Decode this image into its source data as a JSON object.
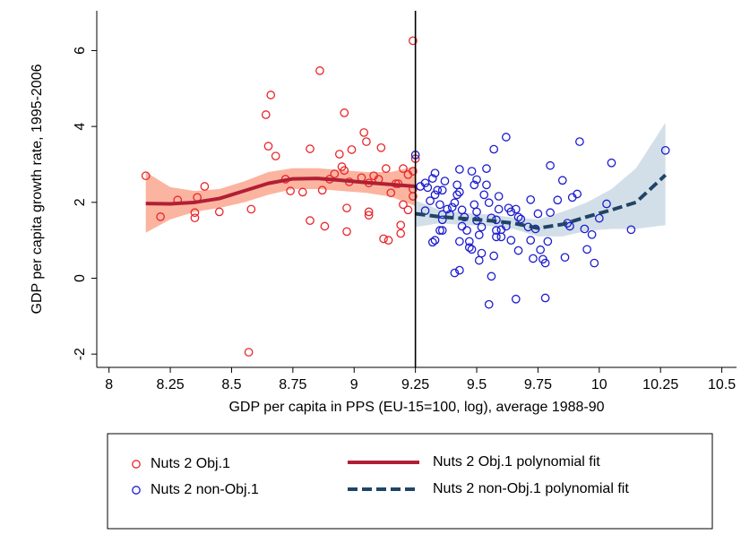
{
  "chart_data": {
    "type": "scatter",
    "xlabel": "GDP per capita in PPS (EU-15=100, log), average 1988-90",
    "ylabel": "GDP per capita growth rate, 1995-2006",
    "xlim": [
      7.95,
      10.56
    ],
    "ylim": [
      -2.35,
      7.05
    ],
    "xticks": [
      8,
      8.25,
      8.5,
      8.75,
      9,
      9.25,
      9.5,
      9.75,
      10,
      10.25,
      10.5
    ],
    "yticks": [
      -2,
      0,
      2,
      4,
      6
    ],
    "xline": 9.25,
    "series": [
      {
        "name": "Nuts 2 Obj.1",
        "type": "scatter",
        "color": "#e8262a",
        "x": [
          8.15,
          8.21,
          8.28,
          8.35,
          8.35,
          8.36,
          8.39,
          8.45,
          8.57,
          8.58,
          8.64,
          8.65,
          8.66,
          8.68,
          8.72,
          8.74,
          8.79,
          8.82,
          8.82,
          8.86,
          8.87,
          8.88,
          8.9,
          8.92,
          8.94,
          8.95,
          8.96,
          8.96,
          8.97,
          8.97,
          8.98,
          8.99,
          9.03,
          9.04,
          9.05,
          9.06,
          9.06,
          9.06,
          9.08,
          9.1,
          9.11,
          9.12,
          9.13,
          9.14,
          9.15,
          9.17,
          9.18,
          9.19,
          9.19,
          9.2,
          9.2,
          9.22,
          9.22,
          9.24,
          9.24,
          9.25,
          9.24,
          9.24
        ],
        "values": [
          2.7,
          1.62,
          2.06,
          1.73,
          1.59,
          2.13,
          2.42,
          1.75,
          -1.95,
          1.82,
          4.31,
          3.48,
          4.83,
          3.22,
          2.61,
          2.3,
          2.27,
          1.52,
          3.41,
          5.47,
          2.32,
          1.37,
          2.61,
          2.75,
          3.27,
          2.94,
          2.84,
          4.36,
          1.23,
          1.85,
          2.54,
          3.39,
          2.65,
          3.84,
          3.6,
          1.75,
          1.66,
          2.51,
          2.7,
          2.61,
          3.44,
          1.04,
          2.89,
          1.0,
          2.25,
          2.49,
          2.49,
          1.18,
          1.4,
          1.94,
          2.89,
          2.73,
          1.8,
          2.35,
          6.26,
          3.15,
          2.82,
          2.16
        ]
      },
      {
        "name": "Nuts 2 non-Obj.1",
        "type": "scatter",
        "color": "#1c1ccf",
        "x": [
          9.25,
          9.27,
          9.29,
          9.3,
          9.29,
          9.31,
          9.32,
          9.33,
          9.33,
          9.34,
          9.35,
          9.36,
          9.36,
          9.37,
          9.32,
          9.33,
          9.35,
          9.36,
          9.36,
          9.38,
          9.39,
          9.4,
          9.41,
          9.42,
          9.42,
          9.43,
          9.43,
          9.41,
          9.43,
          9.43,
          9.44,
          9.44,
          9.45,
          9.46,
          9.47,
          9.47,
          9.48,
          9.48,
          9.49,
          9.49,
          9.5,
          9.5,
          9.51,
          9.51,
          9.52,
          9.52,
          9.53,
          9.54,
          9.54,
          9.55,
          9.55,
          9.56,
          9.56,
          9.57,
          9.58,
          9.58,
          9.58,
          9.59,
          9.59,
          9.6,
          9.6,
          9.62,
          9.62,
          9.63,
          9.64,
          9.64,
          9.66,
          9.67,
          9.67,
          9.68,
          9.71,
          9.72,
          9.74,
          9.77,
          9.78,
          9.79,
          9.8,
          9.83,
          9.85,
          9.86,
          9.88,
          9.89,
          9.95,
          9.98,
          9.66,
          9.78,
          9.92,
          9.8,
          10.05,
          10.27,
          9.91,
          9.97,
          10.0,
          10.03,
          10.13,
          9.87,
          9.75,
          9.72,
          9.76,
          9.73,
          9.57,
          9.5,
          9.94
        ],
        "values": [
          3.25,
          2.42,
          2.51,
          2.39,
          1.78,
          2.04,
          2.63,
          2.77,
          2.2,
          2.32,
          1.94,
          1.68,
          2.32,
          2.56,
          0.95,
          1.0,
          1.26,
          1.26,
          1.54,
          1.82,
          1.68,
          1.87,
          1.99,
          2.2,
          2.46,
          2.87,
          0.21,
          0.14,
          2.27,
          0.97,
          1.37,
          1.8,
          1.61,
          1.26,
          0.97,
          0.81,
          0.76,
          2.82,
          2.46,
          1.94,
          1.75,
          1.52,
          0.47,
          1.14,
          1.35,
          0.66,
          2.2,
          2.46,
          2.89,
          1.99,
          -0.69,
          0.05,
          1.59,
          0.59,
          1.09,
          1.26,
          1.54,
          1.82,
          2.16,
          1.09,
          1.28,
          1.37,
          3.72,
          1.85,
          1.0,
          1.75,
          1.82,
          1.61,
          0.73,
          1.56,
          1.35,
          1.0,
          1.3,
          0.5,
          0.4,
          0.97,
          1.73,
          2.06,
          2.58,
          0.55,
          1.37,
          2.13,
          0.76,
          0.4,
          -0.55,
          -0.52,
          3.6,
          2.97,
          3.04,
          3.37,
          2.22,
          1.15,
          1.58,
          1.96,
          1.28,
          1.45,
          1.7,
          2.07,
          0.75,
          0.52,
          3.4,
          2.6,
          1.3
        ]
      },
      {
        "name": "Nuts 2 Obj.1 polynomial fit",
        "type": "line",
        "color": "#b11f35",
        "dash": false,
        "band_color": "#fbb4a0",
        "x": [
          8.15,
          8.25,
          8.35,
          8.45,
          8.55,
          8.65,
          8.75,
          8.85,
          8.95,
          9.05,
          9.15,
          9.25
        ],
        "values": [
          1.97,
          1.96,
          2.0,
          2.1,
          2.3,
          2.5,
          2.62,
          2.63,
          2.58,
          2.52,
          2.47,
          2.42
        ],
        "ci_lower": [
          1.2,
          1.55,
          1.75,
          1.85,
          2.0,
          2.2,
          2.35,
          2.35,
          2.3,
          2.25,
          2.15,
          1.9
        ],
        "ci_upper": [
          2.8,
          2.4,
          2.3,
          2.35,
          2.55,
          2.8,
          2.9,
          2.9,
          2.85,
          2.8,
          2.8,
          2.95
        ]
      },
      {
        "name": "Nuts 2 non-Obj.1 polynomial fit",
        "type": "line",
        "color": "#1f4566",
        "dash": true,
        "band_color": "#d3dfe8",
        "x": [
          9.25,
          9.35,
          9.45,
          9.55,
          9.65,
          9.75,
          9.85,
          9.95,
          10.05,
          10.15,
          10.27
        ],
        "values": [
          1.7,
          1.62,
          1.57,
          1.52,
          1.45,
          1.32,
          1.42,
          1.62,
          1.8,
          2.0,
          2.72
        ],
        "ci_lower": [
          1.35,
          1.45,
          1.4,
          1.38,
          1.3,
          1.1,
          1.1,
          1.25,
          1.3,
          1.3,
          1.4
        ],
        "ci_upper": [
          2.05,
          1.8,
          1.72,
          1.68,
          1.6,
          1.55,
          1.75,
          2.0,
          2.35,
          2.9,
          4.1
        ]
      }
    ]
  }
}
